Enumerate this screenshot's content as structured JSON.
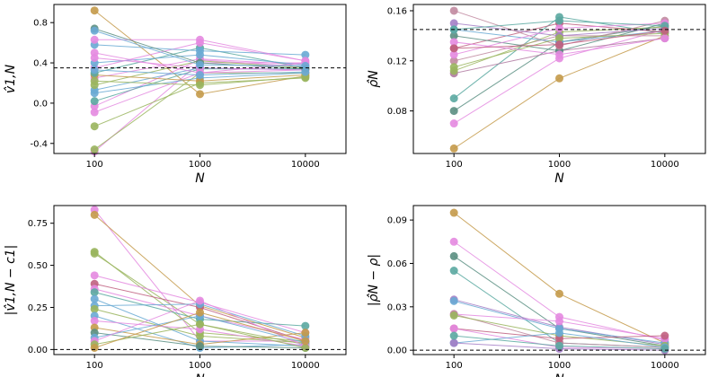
{
  "chart_data": [
    {
      "type": "line",
      "panel": "top-left",
      "xlabel": "N",
      "ylabel": "v̂1,N",
      "categories": [
        "100",
        "1000",
        "10000"
      ],
      "ylim": [
        -0.5,
        0.98
      ],
      "yticks": [
        -0.4,
        0.0,
        0.4,
        0.8
      ],
      "yticklabels": [
        "-0.4",
        "0.0",
        "0.4",
        "0.8"
      ],
      "reference_line": 0.35,
      "series": [
        {
          "color": "#c49a4a",
          "values": [
            0.92,
            0.09,
            0.27
          ]
        },
        {
          "color": "#e48ae0",
          "values": [
            -0.48,
            0.4,
            0.4
          ]
        },
        {
          "color": "#9ab55e",
          "values": [
            -0.46,
            0.3,
            0.3
          ]
        },
        {
          "color": "#9ab55e",
          "values": [
            -0.23,
            0.2,
            0.25
          ]
        },
        {
          "color": "#e48ae0",
          "values": [
            -0.09,
            0.3,
            0.33
          ]
        },
        {
          "color": "#e48ae0",
          "values": [
            -0.03,
            0.43,
            0.36
          ]
        },
        {
          "color": "#5ba9a1",
          "values": [
            0.02,
            0.34,
            0.34
          ]
        },
        {
          "color": "#6aaad4",
          "values": [
            0.1,
            0.25,
            0.3
          ]
        },
        {
          "color": "#6aaad4",
          "values": [
            0.13,
            0.35,
            0.33
          ]
        },
        {
          "color": "#9ab55e",
          "values": [
            0.18,
            0.42,
            0.35
          ]
        },
        {
          "color": "#e48ae0",
          "values": [
            0.25,
            0.44,
            0.38
          ]
        },
        {
          "color": "#c49a4a",
          "values": [
            0.28,
            0.22,
            0.28
          ]
        },
        {
          "color": "#5ba9a1",
          "values": [
            0.3,
            0.55,
            0.35
          ]
        },
        {
          "color": "#e48ae0",
          "values": [
            0.35,
            0.6,
            0.42
          ]
        },
        {
          "color": "#6aaad4",
          "values": [
            0.4,
            0.48,
            0.38
          ]
        },
        {
          "color": "#e48ae0",
          "values": [
            0.45,
            0.35,
            0.33
          ]
        },
        {
          "color": "#e48ae0",
          "values": [
            0.5,
            0.3,
            0.4
          ]
        },
        {
          "color": "#6aaad4",
          "values": [
            0.58,
            0.52,
            0.48
          ]
        },
        {
          "color": "#e48ae0",
          "values": [
            0.63,
            0.63,
            0.42
          ]
        },
        {
          "color": "#5b8f82",
          "values": [
            0.74,
            0.4,
            0.34
          ]
        },
        {
          "color": "#6aaad4",
          "values": [
            0.72,
            0.38,
            0.37
          ]
        },
        {
          "color": "#9ab55e",
          "values": [
            0.22,
            0.18,
            0.26
          ]
        },
        {
          "color": "#6aaad4",
          "values": [
            0.33,
            0.28,
            0.31
          ]
        }
      ]
    },
    {
      "type": "line",
      "panel": "top-right",
      "xlabel": "N",
      "ylabel": "ρ̂N",
      "categories": [
        "100",
        "1000",
        "10000"
      ],
      "ylim": [
        0.046,
        0.165
      ],
      "yticks": [
        0.08,
        0.12,
        0.16
      ],
      "yticklabels": [
        "0.08",
        "0.12",
        "0.16"
      ],
      "reference_line": 0.145,
      "series": [
        {
          "color": "#c49a4a",
          "values": [
            0.05,
            0.106,
            0.14
          ]
        },
        {
          "color": "#e48ae0",
          "values": [
            0.07,
            0.122,
            0.145
          ]
        },
        {
          "color": "#5b8f82",
          "values": [
            0.08,
            0.135,
            0.148
          ]
        },
        {
          "color": "#5ba9a1",
          "values": [
            0.09,
            0.155,
            0.142
          ]
        },
        {
          "color": "#b07aa1",
          "values": [
            0.11,
            0.128,
            0.138
          ]
        },
        {
          "color": "#c18aa0",
          "values": [
            0.12,
            0.14,
            0.14
          ]
        },
        {
          "color": "#9ab55e",
          "values": [
            0.112,
            0.143,
            0.147
          ]
        },
        {
          "color": "#c06080",
          "values": [
            0.13,
            0.15,
            0.143
          ]
        },
        {
          "color": "#5b8f82",
          "values": [
            0.14,
            0.128,
            0.15
          ]
        },
        {
          "color": "#a47fc7",
          "values": [
            0.15,
            0.14,
            0.146
          ]
        },
        {
          "color": "#c18aa0",
          "values": [
            0.16,
            0.132,
            0.152
          ]
        },
        {
          "color": "#6aaad4",
          "values": [
            0.145,
            0.135,
            0.144
          ]
        },
        {
          "color": "#e48ae0",
          "values": [
            0.125,
            0.146,
            0.15
          ]
        },
        {
          "color": "#9ab55e",
          "values": [
            0.115,
            0.138,
            0.142
          ]
        },
        {
          "color": "#e48ae0",
          "values": [
            0.135,
            0.125,
            0.138
          ]
        },
        {
          "color": "#5ba9a1",
          "values": [
            0.145,
            0.152,
            0.148
          ]
        },
        {
          "color": "#c06080",
          "values": [
            0.13,
            0.133,
            0.144
          ]
        }
      ]
    },
    {
      "type": "line",
      "panel": "bottom-left",
      "xlabel": "N",
      "ylabel": "|v̂1,N − c1|",
      "categories": [
        "100",
        "1000",
        "10000"
      ],
      "ylim": [
        -0.03,
        0.855
      ],
      "yticks": [
        0.0,
        0.25,
        0.5,
        0.75
      ],
      "yticklabels": [
        "0.00",
        "0.25",
        "0.50",
        "0.75"
      ],
      "reference_line": 0.0,
      "series": [
        {
          "color": "#e48ae0",
          "values": [
            0.83,
            0.05,
            0.05
          ]
        },
        {
          "color": "#c49a4a",
          "values": [
            0.8,
            0.26,
            0.07
          ]
        },
        {
          "color": "#9ab55e",
          "values": [
            0.58,
            0.1,
            0.05
          ]
        },
        {
          "color": "#9ab55e",
          "values": [
            0.57,
            0.15,
            0.03
          ]
        },
        {
          "color": "#e48ae0",
          "values": [
            0.44,
            0.28,
            0.1
          ]
        },
        {
          "color": "#c06080",
          "values": [
            0.39,
            0.25,
            0.05
          ]
        },
        {
          "color": "#e48ae0",
          "values": [
            0.36,
            0.2,
            0.06
          ]
        },
        {
          "color": "#5ba9a1",
          "values": [
            0.34,
            0.18,
            0.14
          ]
        },
        {
          "color": "#6aaad4",
          "values": [
            0.3,
            0.05,
            0.02
          ]
        },
        {
          "color": "#6aaad4",
          "values": [
            0.26,
            0.27,
            0.08
          ]
        },
        {
          "color": "#9ab55e",
          "values": [
            0.24,
            0.08,
            0.04
          ]
        },
        {
          "color": "#6aaad4",
          "values": [
            0.2,
            0.01,
            0.03
          ]
        },
        {
          "color": "#e48ae0",
          "values": [
            0.17,
            0.12,
            0.02
          ]
        },
        {
          "color": "#c49a4a",
          "values": [
            0.13,
            0.03,
            0.1
          ]
        },
        {
          "color": "#5b8f82",
          "values": [
            0.1,
            0.02,
            0.01
          ]
        },
        {
          "color": "#6aaad4",
          "values": [
            0.07,
            0.2,
            0.04
          ]
        },
        {
          "color": "#e48ae0",
          "values": [
            0.05,
            0.29,
            0.02
          ]
        },
        {
          "color": "#9ab55e",
          "values": [
            0.03,
            0.15,
            0.01
          ]
        },
        {
          "color": "#c49a4a",
          "values": [
            0.01,
            0.22,
            0.05
          ]
        }
      ]
    },
    {
      "type": "line",
      "panel": "bottom-right",
      "xlabel": "N",
      "ylabel": "|ρ̂N − ρ|",
      "categories": [
        "100",
        "1000",
        "10000"
      ],
      "ylim": [
        -0.003,
        0.1
      ],
      "yticks": [
        0.0,
        0.03,
        0.06,
        0.09
      ],
      "yticklabels": [
        "0.00",
        "0.03",
        "0.06",
        "0.09"
      ],
      "reference_line": 0.0,
      "series": [
        {
          "color": "#c49a4a",
          "values": [
            0.095,
            0.039,
            0.005
          ]
        },
        {
          "color": "#e48ae0",
          "values": [
            0.075,
            0.023,
            0.007
          ]
        },
        {
          "color": "#5b8f82",
          "values": [
            0.065,
            0.015,
            0.003
          ]
        },
        {
          "color": "#5ba9a1",
          "values": [
            0.055,
            0.005,
            0.002
          ]
        },
        {
          "color": "#a47fc7",
          "values": [
            0.035,
            0.016,
            0.004
          ]
        },
        {
          "color": "#6aaad4",
          "values": [
            0.034,
            0.015,
            0.005
          ]
        },
        {
          "color": "#e48ae0",
          "values": [
            0.025,
            0.02,
            0.008
          ]
        },
        {
          "color": "#c18aa0",
          "values": [
            0.025,
            0.005,
            0.002
          ]
        },
        {
          "color": "#9ab55e",
          "values": [
            0.024,
            0.01,
            0.003
          ]
        },
        {
          "color": "#c06080",
          "values": [
            0.015,
            0.008,
            0.01
          ]
        },
        {
          "color": "#e48ae0",
          "values": [
            0.015,
            0.002,
            0.001
          ]
        },
        {
          "color": "#6aaad4",
          "values": [
            0.005,
            0.012,
            0.002
          ]
        },
        {
          "color": "#a47fc7",
          "values": [
            0.005,
            0.001,
            0.0
          ]
        },
        {
          "color": "#5ba9a1",
          "values": [
            0.01,
            0.003,
            0.001
          ]
        }
      ]
    }
  ]
}
